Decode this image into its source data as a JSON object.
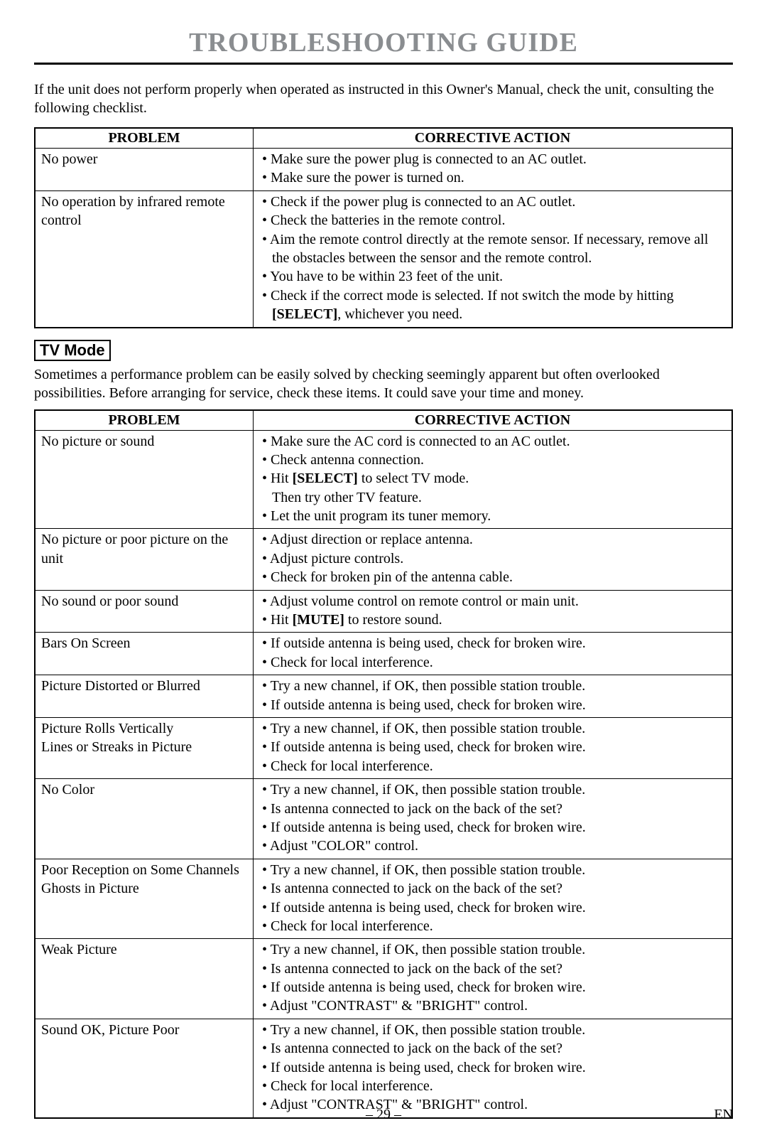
{
  "colors": {
    "title": "#8a8d90",
    "text": "#000000",
    "background": "#ffffff",
    "border": "#000000"
  },
  "page": {
    "title": "TROUBLESHOOTING GUIDE",
    "intro": "If the unit does not perform properly when operated as instructed in this Owner's Manual, check the unit, consulting the following checklist.",
    "footer_page": "– 29 –",
    "footer_right": "EN"
  },
  "table1": {
    "col_problem": "PROBLEM",
    "col_action": "CORRECTIVE ACTION",
    "rows": [
      {
        "problem": "No power",
        "actions": [
          {
            "text": "• Make sure the power plug is connected to an AC outlet."
          },
          {
            "text": "• Make sure the power is turned on."
          }
        ]
      },
      {
        "problem": "No operation by infrared remote control",
        "actions": [
          {
            "text": "• Check if the power plug is connected to an AC outlet."
          },
          {
            "text": "• Check the batteries in the remote control."
          },
          {
            "text": "• Aim the remote control directly at the remote sensor. If necessary, remove all the obstacles between the sensor and the remote control."
          },
          {
            "text": "• You have to be within 23 feet of the unit."
          },
          {
            "html": "• Check if the correct mode is selected. If not switch the mode by hitting <span class=\"bold-inline\">[SELECT]</span>, whichever you need."
          }
        ]
      }
    ]
  },
  "tv_mode": {
    "label": "TV Mode",
    "intro": "Sometimes a performance problem can be easily solved by checking seemingly apparent but often overlooked possibilities. Before arranging for service, check these items. It could save your time and money."
  },
  "table2": {
    "col_problem": "PROBLEM",
    "col_action": "CORRECTIVE ACTION",
    "rows": [
      {
        "problem": "No picture or sound",
        "actions": [
          {
            "text": "• Make sure the AC cord is connected to an AC outlet."
          },
          {
            "text": "• Check antenna connection."
          },
          {
            "html": "• Hit <span class=\"bold-inline\">[SELECT]</span> to select TV mode."
          },
          {
            "text": "Then try other TV feature.",
            "cont": true
          },
          {
            "text": "• Let the unit program its tuner memory."
          }
        ]
      },
      {
        "problem": "No picture or poor picture on the unit",
        "actions": [
          {
            "text": "• Adjust direction or replace antenna."
          },
          {
            "text": "• Adjust picture controls."
          },
          {
            "text": "• Check for broken pin of the antenna cable."
          }
        ]
      },
      {
        "problem": "No sound or poor sound",
        "actions": [
          {
            "text": "• Adjust volume control on remote control or main unit."
          },
          {
            "html": "• Hit <span class=\"bold-inline\">[MUTE]</span> to restore sound."
          }
        ]
      },
      {
        "problem": "Bars On Screen",
        "actions": [
          {
            "text": "• If outside antenna is being used, check for broken wire."
          },
          {
            "text": "• Check for local interference."
          }
        ]
      },
      {
        "problem": "Picture Distorted or Blurred",
        "actions": [
          {
            "text": "• Try a new channel, if OK, then possible station trouble."
          },
          {
            "text": "• If outside antenna is being used, check for broken wire."
          }
        ]
      },
      {
        "problem": "Picture Rolls Vertically\nLines or Streaks in Picture",
        "actions": [
          {
            "text": "• Try a new channel, if OK, then possible station trouble."
          },
          {
            "text": "• If outside antenna is being used, check for broken wire."
          },
          {
            "text": "• Check for local interference."
          }
        ]
      },
      {
        "problem": "No Color",
        "actions": [
          {
            "text": "• Try a new channel, if OK, then possible station trouble."
          },
          {
            "text": "• Is antenna connected to jack on the back of the set?"
          },
          {
            "text": "• If outside antenna is being used, check for broken wire."
          },
          {
            "text": "• Adjust \"COLOR\" control."
          }
        ]
      },
      {
        "problem": "Poor Reception on Some Channels\nGhosts in Picture",
        "actions": [
          {
            "text": "• Try a new channel, if OK, then possible station trouble."
          },
          {
            "text": "• Is antenna connected to jack on the back of the set?"
          },
          {
            "text": "• If outside antenna is being used, check for broken wire."
          },
          {
            "text": "• Check for local interference."
          }
        ]
      },
      {
        "problem": "Weak Picture",
        "actions": [
          {
            "text": "• Try a new channel, if OK, then possible station trouble."
          },
          {
            "text": "• Is antenna connected to jack on the back of the set?"
          },
          {
            "text": "• If outside antenna is being used, check for broken wire."
          },
          {
            "text": "• Adjust \"CONTRAST\" & \"BRIGHT\" control."
          }
        ]
      },
      {
        "problem": "Sound OK, Picture Poor",
        "actions": [
          {
            "text": "• Try a new channel, if OK, then possible station trouble."
          },
          {
            "text": "• Is antenna connected to jack on the back of the set?"
          },
          {
            "text": "• If outside antenna is being used, check for broken wire."
          },
          {
            "text": "• Check for local interference."
          },
          {
            "text": "• Adjust \"CONTRAST\" & \"BRIGHT\" control."
          }
        ]
      }
    ]
  }
}
